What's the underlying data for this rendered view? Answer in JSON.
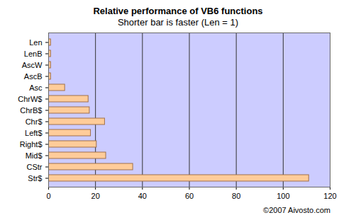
{
  "chart_data": {
    "type": "bar",
    "orientation": "horizontal",
    "title": "Relative performance of VB6 functions",
    "subtitle": "Shorter bar is faster (Len = 1)",
    "annotations": [
      "©2007 Aivosto.com"
    ],
    "categories": [
      "Len",
      "LenB",
      "AscW",
      "AscB",
      "Asc",
      "ChrW$",
      "ChrB$",
      "Chr$",
      "Left$",
      "Right$",
      "Mid$",
      "CStr",
      "Str$"
    ],
    "values": [
      1,
      1,
      1,
      1,
      7,
      17,
      17.5,
      24,
      18,
      20.5,
      24.5,
      36,
      111
    ],
    "color": "#ffcc99",
    "xlim": [
      0,
      120
    ],
    "xticks": [
      0,
      20,
      40,
      60,
      80,
      100,
      120
    ],
    "grid": true
  }
}
